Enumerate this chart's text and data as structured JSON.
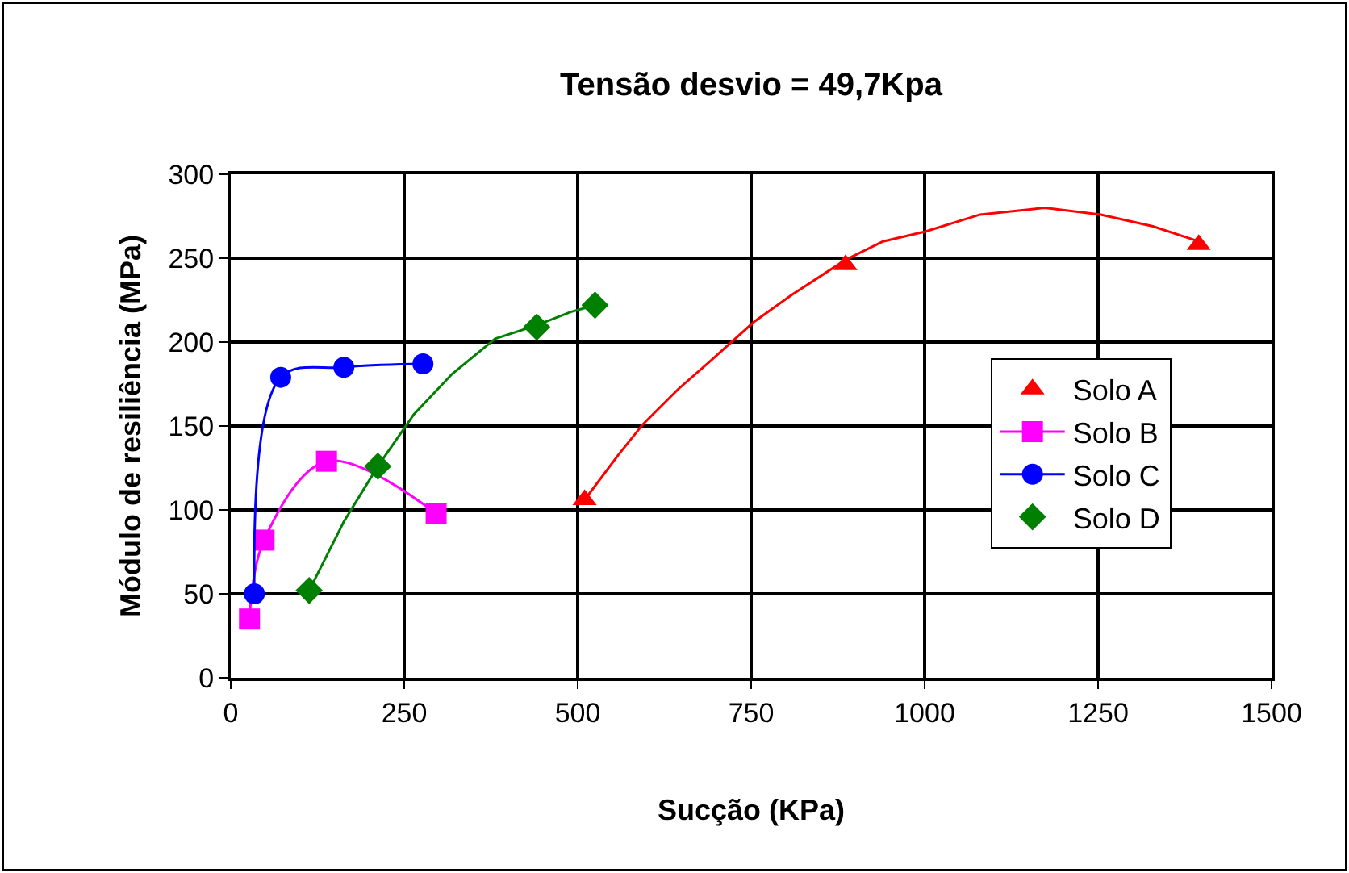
{
  "chart_data": {
    "type": "scatter",
    "title": "Tensão desvio = 49,7Kpa",
    "xlabel": "Sucção (KPa)",
    "ylabel": "Módulo de resiliência (MPa)",
    "xlim": [
      0,
      1500
    ],
    "xticks": [
      0,
      250,
      500,
      750,
      1000,
      1250,
      1500
    ],
    "ylim": [
      0,
      300
    ],
    "yticks": [
      0,
      50,
      100,
      150,
      200,
      250,
      300
    ],
    "grid": true,
    "legend": "right",
    "series": [
      {
        "name": "Solo A",
        "marker": "triangle",
        "color": "#ff0000",
        "x": [
          510,
          886,
          1395
        ],
        "values": [
          106,
          246,
          258
        ]
      },
      {
        "name": "Solo B",
        "type": "line",
        "marker": "square",
        "color": "#ff00ff",
        "x": [
          27,
          48,
          138,
          296
        ],
        "values": [
          35,
          82,
          129,
          98
        ]
      },
      {
        "name": "Solo C",
        "type": "line",
        "marker": "circle",
        "color": "#0000ff",
        "x": [
          34,
          72,
          163,
          277
        ],
        "values": [
          50,
          179,
          185,
          187
        ]
      },
      {
        "name": "Solo D",
        "marker": "diamond",
        "color": "#008000",
        "x": [
          113,
          212,
          441,
          525
        ],
        "values": [
          52,
          126,
          209,
          222
        ]
      },
      {
        "type": "line",
        "marker": "none",
        "color": "#ff0000",
        "x": [
          510,
          559,
          594,
          645,
          692,
          754,
          808,
          886,
          940,
          1002,
          1080,
          1173,
          1254,
          1329,
          1395
        ],
        "values": [
          106,
          133,
          151,
          172,
          189,
          212,
          228,
          249,
          260,
          266,
          276,
          280,
          276,
          269,
          260
        ]
      },
      {
        "type": "line",
        "marker": "none",
        "color": "#008000",
        "x": [
          113,
          163,
          212,
          264,
          319,
          381,
          441,
          490,
          525
        ],
        "values": [
          52,
          93,
          126,
          157,
          181,
          202,
          210,
          218,
          222
        ]
      }
    ]
  }
}
